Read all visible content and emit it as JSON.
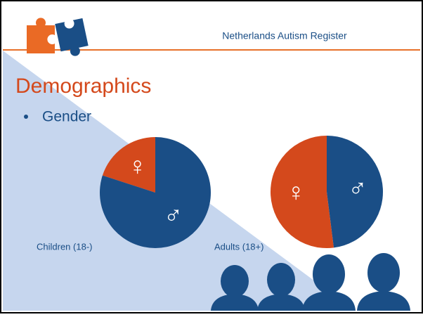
{
  "header": {
    "title": "Netherlands Autism Register"
  },
  "slide": {
    "title": "Demographics",
    "bullet": "Gender"
  },
  "chart_data": [
    {
      "type": "pie",
      "title": "Children (18-)",
      "categories": [
        "♀",
        "♂"
      ],
      "values": [
        20,
        80
      ],
      "colors": [
        "#d4491c",
        "#1a4e86"
      ]
    },
    {
      "type": "pie",
      "title": "Adults (18+)",
      "categories": [
        "♀",
        "♂"
      ],
      "values": [
        52,
        48
      ],
      "colors": [
        "#d4491c",
        "#1a4e86"
      ]
    }
  ]
}
